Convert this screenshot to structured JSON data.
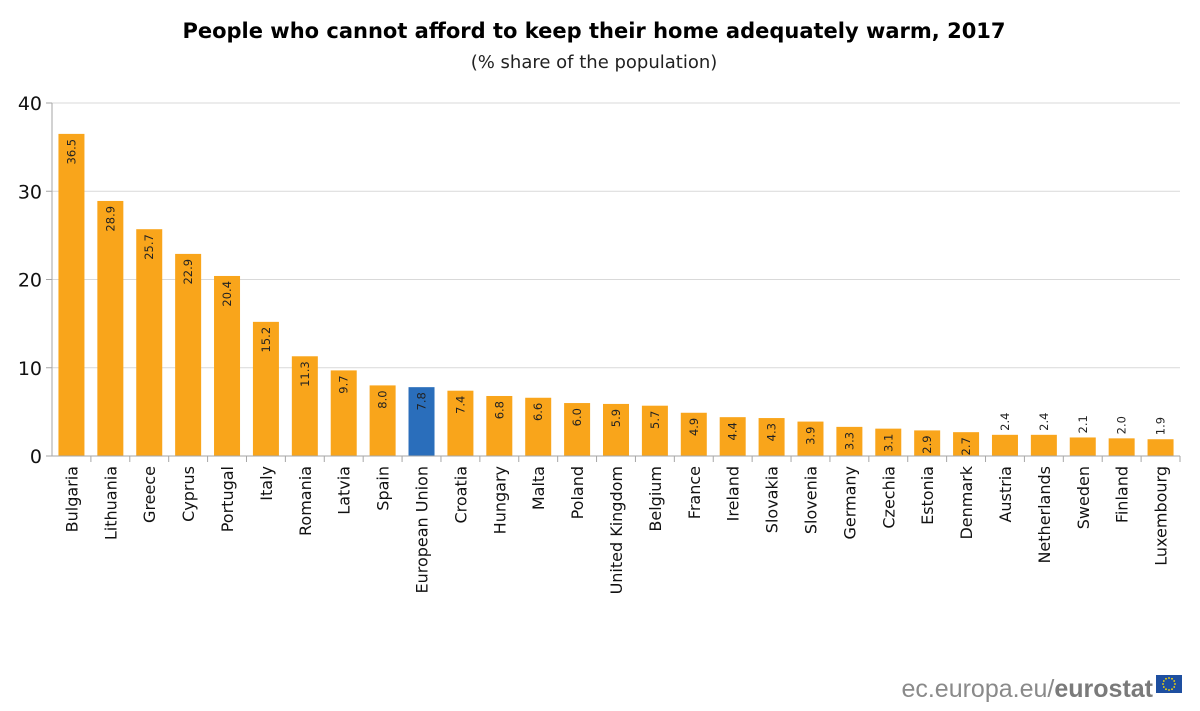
{
  "chart_data": {
    "type": "bar",
    "title": "People who cannot afford to keep their home adequately warm, 2017",
    "subtitle": "(% share of the population)",
    "xlabel": "",
    "ylabel": "",
    "ylim": [
      0,
      40
    ],
    "yticks": [
      0,
      10,
      20,
      30,
      40
    ],
    "grid": true,
    "categories": [
      "Bulgaria",
      "Lithuania",
      "Greece",
      "Cyprus",
      "Portugal",
      "Italy",
      "Romania",
      "Latvia",
      "Spain",
      "European Union",
      "Croatia",
      "Hungary",
      "Malta",
      "Poland",
      "United Kingdom",
      "Belgium",
      "France",
      "Ireland",
      "Slovakia",
      "Slovenia",
      "Germany",
      "Czechia",
      "Estonia",
      "Denmark",
      "Austria",
      "Netherlands",
      "Sweden",
      "Finland",
      "Luxembourg"
    ],
    "values": [
      36.5,
      28.9,
      25.7,
      22.9,
      20.4,
      15.2,
      11.3,
      9.7,
      8.0,
      7.8,
      7.4,
      6.8,
      6.6,
      6.0,
      5.9,
      5.7,
      4.9,
      4.4,
      4.3,
      3.9,
      3.3,
      3.1,
      2.9,
      2.7,
      2.4,
      2.4,
      2.1,
      2.0,
      1.9
    ],
    "highlight": "European Union",
    "colors": {
      "bar": "#F9A51B",
      "highlight": "#2A6EBB",
      "grid": "#D9D9D9",
      "axis": "#A6A6A6"
    }
  },
  "footer": {
    "source_prefix": "ec.europa.eu/",
    "source_brand": "eurostat",
    "logo": "eu-flag-icon"
  }
}
